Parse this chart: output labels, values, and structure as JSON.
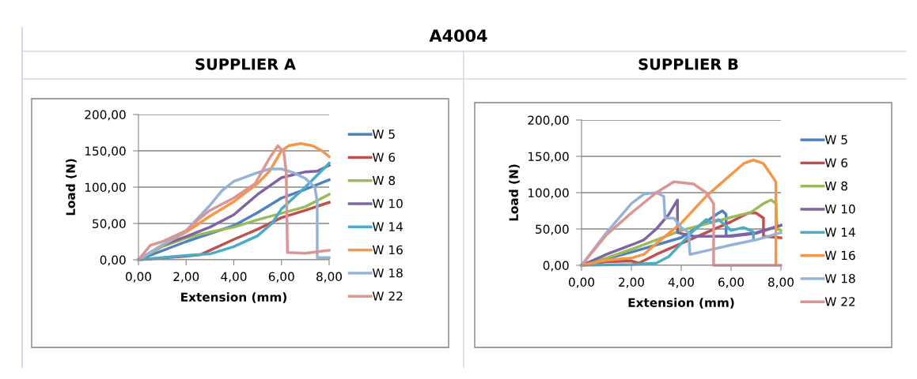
{
  "chart_data": [
    {
      "type": "line",
      "title": "SUPPLIER A",
      "annotations": [
        "A4004"
      ],
      "xlabel": "Extension (mm)",
      "ylabel": "Load (N)",
      "xlim": [
        0,
        8
      ],
      "ylim": [
        0,
        200
      ],
      "xticks": [
        {
          "value": 0,
          "label": "0,00"
        },
        {
          "value": 2,
          "label": "2,00"
        },
        {
          "value": 4,
          "label": "4,00"
        },
        {
          "value": 6,
          "label": "6,00"
        },
        {
          "value": 8,
          "label": "8,00"
        }
      ],
      "yticks": [
        {
          "value": 0,
          "label": "0,00"
        },
        {
          "value": 50,
          "label": "50,00"
        },
        {
          "value": 100,
          "label": "100,00"
        },
        {
          "value": 150,
          "label": "150,00"
        },
        {
          "value": 200,
          "label": "200,00"
        }
      ],
      "grid": "y",
      "legend": "right",
      "marker": "none",
      "series": [
        {
          "name": "W 5",
          "color": "#4f81bd",
          "x": [
            0,
            2,
            4,
            5,
            6,
            7,
            8
          ],
          "values": [
            0,
            25,
            47,
            65,
            85,
            97,
            110
          ]
        },
        {
          "name": "W 6",
          "color": "#c0504d",
          "x": [
            0,
            2,
            2.6,
            4,
            5,
            6,
            7,
            8
          ],
          "values": [
            0,
            5,
            7,
            28,
            42,
            58,
            68,
            79
          ]
        },
        {
          "name": "W 8",
          "color": "#9bbb59",
          "x": [
            0,
            1,
            2,
            3,
            4,
            5,
            6,
            7,
            8
          ],
          "values": [
            0,
            18,
            30,
            38,
            45,
            55,
            64,
            73,
            90
          ]
        },
        {
          "name": "W 10",
          "color": "#8064a2",
          "x": [
            0,
            1,
            2,
            3,
            4,
            5,
            6,
            7,
            7.5,
            8
          ],
          "values": [
            0,
            20,
            32,
            45,
            62,
            90,
            113,
            121,
            122,
            130
          ]
        },
        {
          "name": "W 14",
          "color": "#4bacc6",
          "x": [
            0,
            1,
            2,
            3,
            4,
            5,
            5.6,
            6,
            7,
            8
          ],
          "values": [
            0,
            3,
            6,
            8,
            18,
            33,
            50,
            70,
            100,
            133
          ]
        },
        {
          "name": "W 16",
          "color": "#f79646",
          "x": [
            0,
            1,
            2,
            3,
            4,
            5,
            5.5,
            6,
            6.3,
            6.8,
            7.3,
            7.7,
            8
          ],
          "values": [
            0,
            20,
            38,
            60,
            80,
            105,
            122,
            150,
            157,
            160,
            157,
            150,
            142
          ]
        },
        {
          "name": "W 18",
          "color": "#95b3d7",
          "x": [
            0,
            1,
            2,
            3,
            3.5,
            4,
            5,
            5.5,
            6,
            6.5,
            7,
            7.4,
            7.5,
            7.5,
            8
          ],
          "values": [
            0,
            20,
            40,
            75,
            95,
            108,
            120,
            125,
            125,
            120,
            112,
            100,
            80,
            3,
            3
          ]
        },
        {
          "name": "W 22",
          "color": "#d99694",
          "x": [
            0,
            0.5,
            1,
            2,
            2.5,
            3,
            4,
            4.9,
            5.5,
            5.85,
            6.1,
            6.2,
            6.25,
            7,
            8
          ],
          "values": [
            0,
            20,
            25,
            40,
            55,
            68,
            85,
            105,
            140,
            157,
            148,
            120,
            10,
            9,
            13
          ]
        }
      ]
    },
    {
      "type": "line",
      "title": "SUPPLIER B",
      "xlabel": "Extension (mm)",
      "ylabel": "Load (N)",
      "xlim": [
        0,
        8
      ],
      "ylim": [
        0,
        200
      ],
      "xticks": [
        {
          "value": 0,
          "label": "0,00"
        },
        {
          "value": 2,
          "label": "2,00"
        },
        {
          "value": 4,
          "label": "4,00"
        },
        {
          "value": 6,
          "label": "6,00"
        },
        {
          "value": 8,
          "label": "8,00"
        }
      ],
      "yticks": [
        {
          "value": 0,
          "label": "0,00"
        },
        {
          "value": 50,
          "label": "50,00"
        },
        {
          "value": 100,
          "label": "100,00"
        },
        {
          "value": 150,
          "label": "150,00"
        },
        {
          "value": 200,
          "label": "200,00"
        }
      ],
      "grid": "y",
      "legend": "right",
      "marker": "none",
      "series": [
        {
          "name": "W 5",
          "color": "#4f81bd",
          "x": [
            0,
            2,
            4,
            5,
            5.5,
            5.65,
            5.8,
            5.8,
            7,
            8
          ],
          "values": [
            0,
            18,
            38,
            60,
            72,
            75,
            70,
            40,
            45,
            55
          ]
        },
        {
          "name": "W 6",
          "color": "#c0504d",
          "x": [
            0,
            1,
            2,
            2.3,
            3,
            4,
            5,
            6,
            6.7,
            7,
            7.3,
            7.3,
            8
          ],
          "values": [
            0,
            5,
            6,
            3,
            15,
            30,
            45,
            60,
            72,
            72,
            65,
            40,
            38
          ]
        },
        {
          "name": "W 8",
          "color": "#9bbb59",
          "x": [
            0,
            1,
            2,
            3,
            4,
            5,
            6,
            6.8,
            7.3,
            7.6,
            7.8,
            7.85,
            8
          ],
          "values": [
            0,
            10,
            22,
            35,
            48,
            57,
            66,
            73,
            85,
            90,
            85,
            50,
            48
          ]
        },
        {
          "name": "W 10",
          "color": "#8064a2",
          "x": [
            0,
            1,
            2,
            2.5,
            3,
            3.5,
            3.85,
            3.85,
            4.5,
            6,
            7,
            8
          ],
          "values": [
            0,
            15,
            28,
            35,
            50,
            70,
            90,
            45,
            40,
            40,
            44,
            55
          ]
        },
        {
          "name": "W 14",
          "color": "#4bacc6",
          "x": [
            0,
            2,
            3,
            3.5,
            4,
            4.5,
            5,
            5.2,
            5.5,
            6,
            6.5,
            6.9,
            6.9
          ],
          "values": [
            0,
            1,
            3,
            12,
            30,
            48,
            63,
            59,
            63,
            48,
            52,
            46,
            37
          ]
        },
        {
          "name": "W 16",
          "color": "#f79646",
          "x": [
            0,
            1,
            2,
            2.5,
            3,
            4,
            5,
            6,
            6.5,
            6.9,
            7.3,
            7.6,
            7.8,
            7.8
          ],
          "values": [
            0,
            7,
            10,
            15,
            30,
            58,
            95,
            125,
            140,
            145,
            140,
            125,
            115,
            0
          ]
        },
        {
          "name": "W 18",
          "color": "#95b3d7",
          "x": [
            0,
            1,
            2,
            2.5,
            3,
            3.3,
            3.35,
            3.7,
            4,
            4.3,
            4.35,
            5,
            6,
            7,
            8
          ],
          "values": [
            0,
            45,
            85,
            98,
            100,
            95,
            65,
            65,
            52,
            45,
            15,
            20,
            28,
            35,
            45
          ]
        },
        {
          "name": "W 22",
          "color": "#d99694",
          "x": [
            0,
            1,
            2,
            3,
            3.7,
            4.5,
            5,
            5.3,
            5.3,
            8
          ],
          "values": [
            0,
            42,
            72,
            100,
            115,
            112,
            100,
            85,
            0,
            0
          ]
        }
      ]
    }
  ]
}
